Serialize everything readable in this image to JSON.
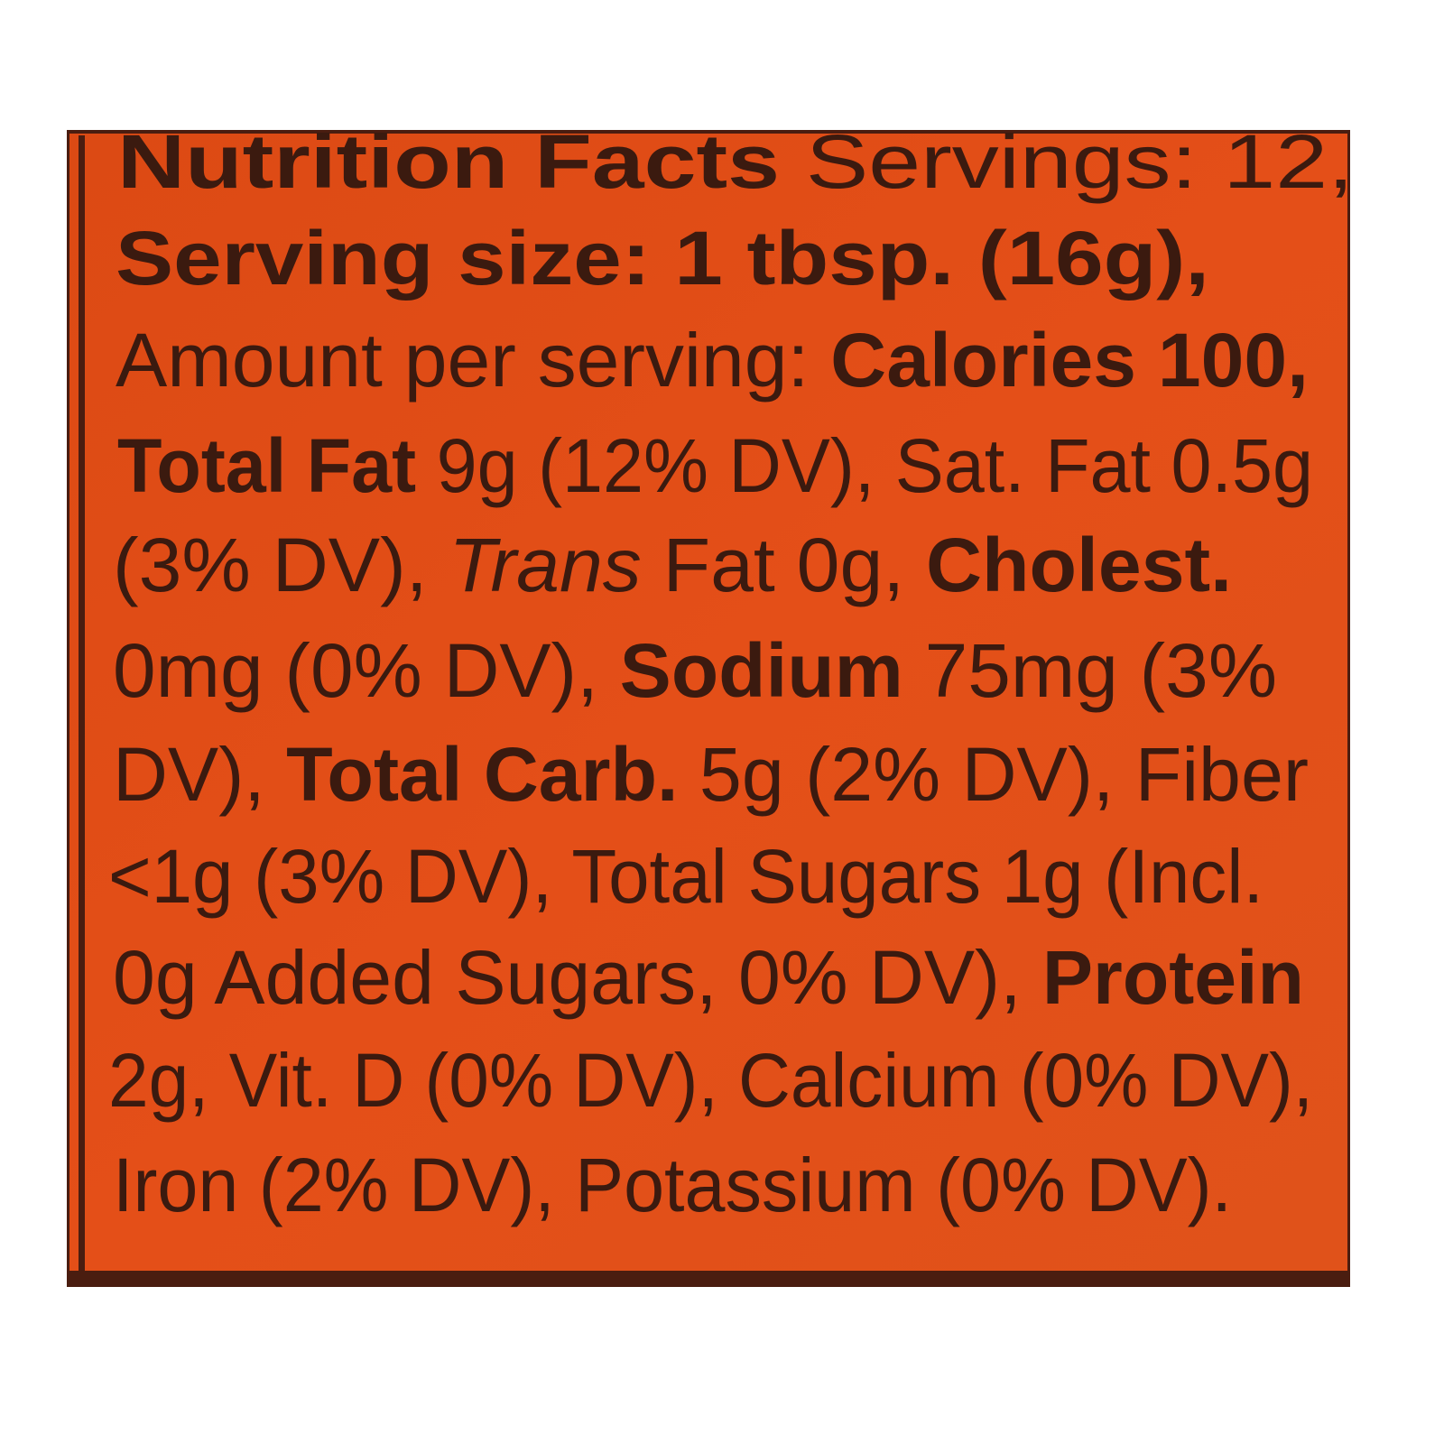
{
  "label": {
    "panel_color": "#e24d16",
    "text_color": "#3b1a0f",
    "lines": [
      [
        "Nutrition Facts",
        " Servings: 12,"
      ],
      [
        "Serving size: 1 tbsp. (16g),"
      ],
      [
        "Amount per serving: ",
        "Calories 100,"
      ],
      [
        "Total Fat",
        " 9g (12% DV), Sat. Fat 0.5g"
      ],
      [
        "(3% DV), ",
        "Trans",
        " Fat 0g, ",
        "Cholest."
      ],
      [
        "0mg (0% DV), ",
        "Sodium",
        " 75mg (3%"
      ],
      [
        "DV), ",
        "Total Carb.",
        " 5g (2% DV), Fiber"
      ],
      [
        "<1g (3% DV), Total Sugars 1g (Incl."
      ],
      [
        "0g Added Sugars, 0% DV), ",
        "Protein"
      ],
      [
        "2g, Vit. D (0% DV), Calcium (0% DV),"
      ],
      [
        "Iron (2% DV), Potassium (0% DV)."
      ]
    ]
  }
}
